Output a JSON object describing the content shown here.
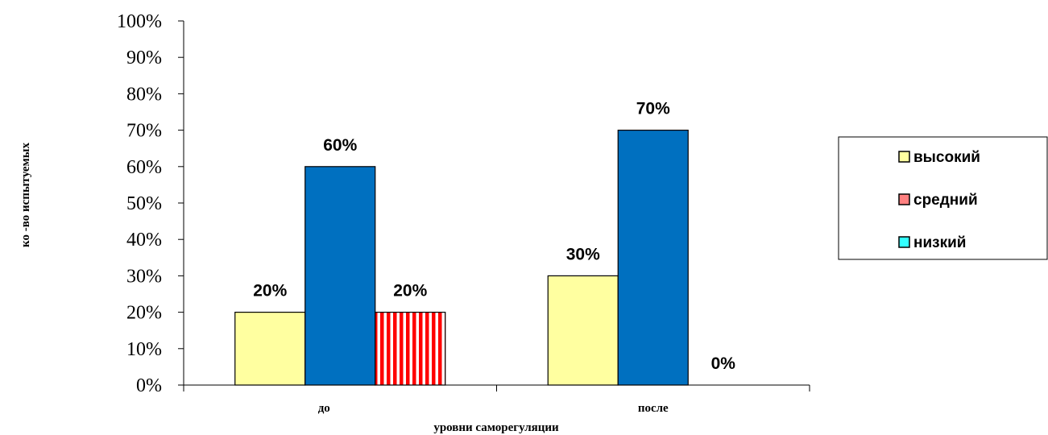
{
  "chart_data": {
    "type": "bar",
    "categories": [
      "до",
      "после"
    ],
    "series": [
      {
        "name": "высокий",
        "values": [
          20,
          30
        ],
        "labels": [
          "20%",
          "30%"
        ],
        "color": "#ffffa0",
        "pattern": "solid"
      },
      {
        "name": "средний",
        "values": [
          60,
          70
        ],
        "labels": [
          "60%",
          "70%"
        ],
        "color": "#0070c0",
        "pattern": "solid",
        "legend_color": "#ff8080"
      },
      {
        "name": "низкий",
        "values": [
          20,
          0
        ],
        "labels": [
          "20%",
          "0%"
        ],
        "color": "#ff0000",
        "pattern": "vertical-stripes",
        "legend_color": "#33ffff"
      }
    ],
    "y_ticks": [
      "0%",
      "10%",
      "20%",
      "30%",
      "40%",
      "50%",
      "60%",
      "70%",
      "80%",
      "90%",
      "100%"
    ],
    "ylim": [
      0,
      100
    ],
    "xlabel": "уровни саморегуляции",
    "ylabel": "ко -во испытуемых",
    "grid": false,
    "legend_position": "right"
  }
}
